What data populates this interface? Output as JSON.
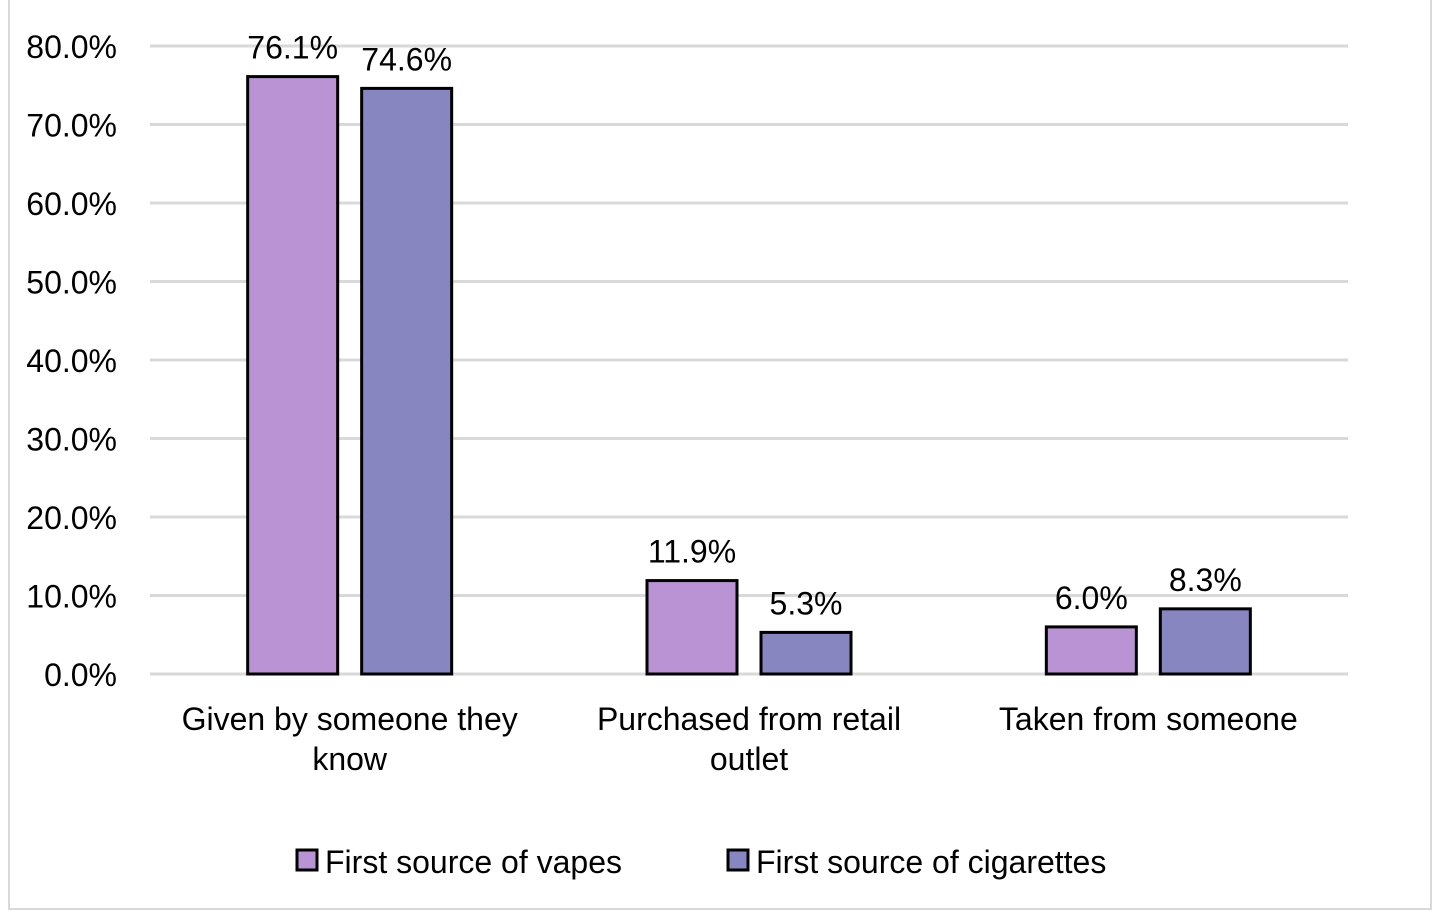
{
  "chart_data": {
    "type": "bar",
    "categories": [
      [
        "Given by someone they",
        "know"
      ],
      [
        "Purchased from retail",
        "outlet"
      ],
      [
        "Taken from someone"
      ]
    ],
    "series": [
      {
        "name": "First source of vapes",
        "values": [
          76.1,
          11.9,
          6.0
        ],
        "labels": [
          "76.1%",
          "11.9%",
          "6.0%"
        ],
        "color": "#b993d3"
      },
      {
        "name": "First source of cigarettes",
        "values": [
          74.6,
          5.3,
          8.3
        ],
        "labels": [
          "74.6%",
          "5.3%",
          "8.3%"
        ],
        "color": "#8886c0"
      }
    ],
    "yticks": [
      "0.0%",
      "10.0%",
      "20.0%",
      "30.0%",
      "40.0%",
      "50.0%",
      "60.0%",
      "70.0%",
      "80.0%"
    ],
    "ylim": [
      0,
      80
    ],
    "grid": true,
    "gridline_color": "#d9d9d9",
    "legend_position": "bottom"
  }
}
